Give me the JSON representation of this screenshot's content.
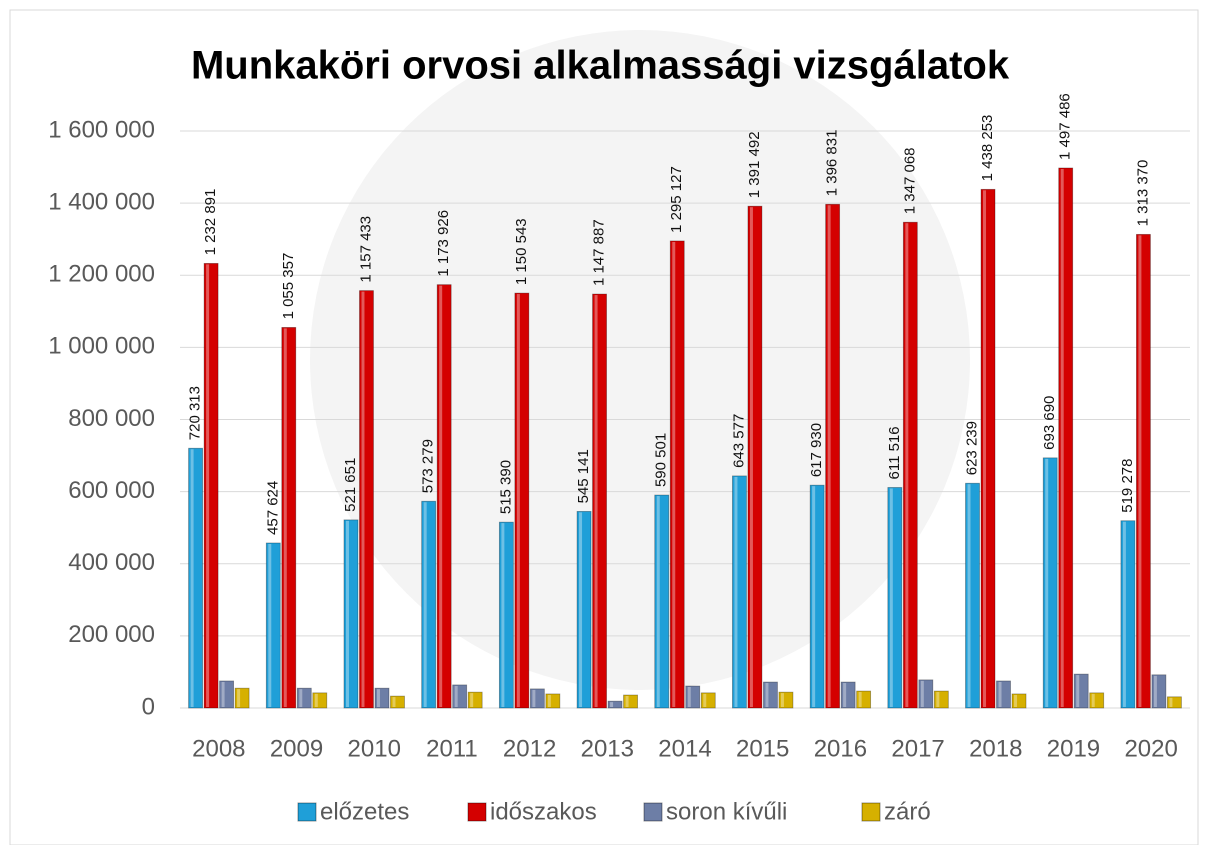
{
  "chart_data": {
    "type": "bar",
    "title": "Munkaköri orvosi alkalmassági vizsgálatok",
    "categories": [
      "2008",
      "2009",
      "2010",
      "2011",
      "2012",
      "2013",
      "2014",
      "2015",
      "2016",
      "2017",
      "2018",
      "2019",
      "2020"
    ],
    "series": [
      {
        "name": "előzetes",
        "color": "#1f9fd8",
        "values": [
          720313,
          457624,
          521651,
          573279,
          515390,
          545141,
          590501,
          643577,
          617930,
          611516,
          623239,
          693690,
          519278
        ],
        "value_labels": [
          "720 313",
          "457 624",
          "521 651",
          "573 279",
          "515 390",
          "545 141",
          "590 501",
          "643 577",
          "617 930",
          "611 516",
          "623 239",
          "693 690",
          "519 278"
        ]
      },
      {
        "name": "időszakos",
        "color": "#d40000",
        "values": [
          1232891,
          1055357,
          1157433,
          1173926,
          1150543,
          1147887,
          1295127,
          1391492,
          1396831,
          1347068,
          1438253,
          1497486,
          1313370
        ],
        "value_labels": [
          "1 232 891",
          "1 055 357",
          "1 157 433",
          "1 173 926",
          "1 150 543",
          "1 147 887",
          "1 295 127",
          "1 391 492",
          "1 396 831",
          "1 347 068",
          "1 438 253",
          "1 497 486",
          "1 313 370"
        ]
      },
      {
        "name": "soron kívűli",
        "color": "#6d7ea6",
        "values": [
          75000,
          55000,
          55000,
          64000,
          53000,
          19000,
          61000,
          72000,
          72000,
          78000,
          75000,
          94000,
          92000
        ]
      },
      {
        "name": "záró",
        "color": "#d6b000",
        "values": [
          55000,
          42000,
          33000,
          44000,
          39000,
          36000,
          42000,
          44000,
          47000,
          47000,
          39000,
          42000,
          31000
        ]
      }
    ],
    "ylim": [
      0,
      1600000
    ],
    "yticks": [
      0,
      {
        "value": 200000,
        "label": "200 000"
      },
      {
        "value": 400000,
        "label": "400 000"
      },
      {
        "value": 600000,
        "label": "600 000"
      },
      {
        "value": 800000,
        "label": "800 000"
      },
      {
        "value": 1000000,
        "label": "1 000 000"
      },
      {
        "value": 1200000,
        "label": "1 200 000"
      },
      {
        "value": 1400000,
        "label": "1 400 000"
      },
      {
        "value": 1600000,
        "label": "1 600 000"
      }
    ],
    "grid": true
  }
}
